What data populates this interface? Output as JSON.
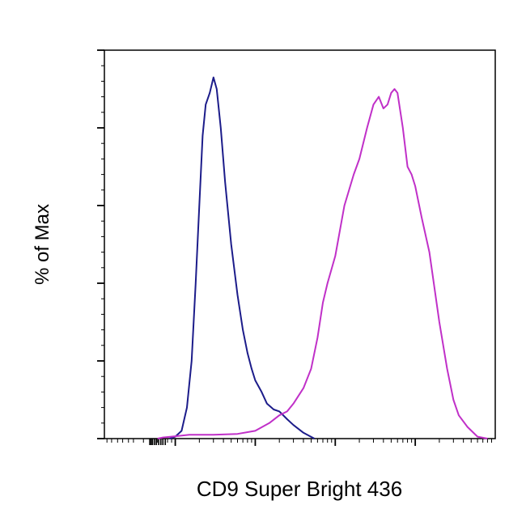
{
  "chart_data": {
    "type": "line",
    "title": "",
    "xlabel": "CD9 Super Bright 436",
    "ylabel": "% of Max",
    "x_scale": "log",
    "xlim": [
      0.13,
      10000
    ],
    "ylim": [
      0,
      100
    ],
    "grid": false,
    "legend": "none",
    "series": [
      {
        "color": "#1c1c8a",
        "points": [
          [
            0.85,
            0
          ],
          [
            1.0,
            0.5
          ],
          [
            1.2,
            2
          ],
          [
            1.4,
            8
          ],
          [
            1.6,
            20
          ],
          [
            1.8,
            40
          ],
          [
            2.0,
            60
          ],
          [
            2.2,
            78
          ],
          [
            2.4,
            86
          ],
          [
            2.7,
            89
          ],
          [
            3.0,
            93
          ],
          [
            3.3,
            90
          ],
          [
            3.7,
            80
          ],
          [
            4.2,
            66
          ],
          [
            5.0,
            50
          ],
          [
            6.0,
            37
          ],
          [
            7.0,
            28
          ],
          [
            8.0,
            22
          ],
          [
            9.0,
            18
          ],
          [
            10.0,
            15
          ],
          [
            12.0,
            12
          ],
          [
            14.0,
            9
          ],
          [
            17.0,
            7.5
          ],
          [
            20.0,
            7
          ],
          [
            25.0,
            5
          ],
          [
            30.0,
            3.5
          ],
          [
            40.0,
            1.5
          ],
          [
            55.0,
            0
          ]
        ]
      },
      {
        "color": "#c030c8",
        "points": [
          [
            0.6,
            0
          ],
          [
            0.7,
            0.3
          ],
          [
            1.0,
            0.6
          ],
          [
            1.5,
            1.0
          ],
          [
            3.0,
            1.0
          ],
          [
            6.0,
            1.2
          ],
          [
            10.0,
            2
          ],
          [
            15.0,
            4
          ],
          [
            20.0,
            6
          ],
          [
            25.0,
            7
          ],
          [
            30.0,
            9
          ],
          [
            40.0,
            13
          ],
          [
            50.0,
            18
          ],
          [
            60.0,
            26
          ],
          [
            70.0,
            35
          ],
          [
            80.0,
            40
          ],
          [
            100.0,
            47
          ],
          [
            130.0,
            60
          ],
          [
            170.0,
            68
          ],
          [
            200.0,
            72
          ],
          [
            250.0,
            80
          ],
          [
            300.0,
            86
          ],
          [
            350.0,
            88
          ],
          [
            400.0,
            85
          ],
          [
            450.0,
            86
          ],
          [
            500.0,
            89
          ],
          [
            550.0,
            90
          ],
          [
            600.0,
            89
          ],
          [
            700.0,
            80
          ],
          [
            800.0,
            70
          ],
          [
            900.0,
            68
          ],
          [
            1000.0,
            65
          ],
          [
            1200.0,
            57
          ],
          [
            1500.0,
            48
          ],
          [
            2000.0,
            30
          ],
          [
            2500.0,
            18
          ],
          [
            3000.0,
            10
          ],
          [
            3500.0,
            6
          ],
          [
            4500.0,
            3
          ],
          [
            6000.0,
            0.5
          ],
          [
            8000.0,
            0
          ]
        ]
      }
    ]
  }
}
